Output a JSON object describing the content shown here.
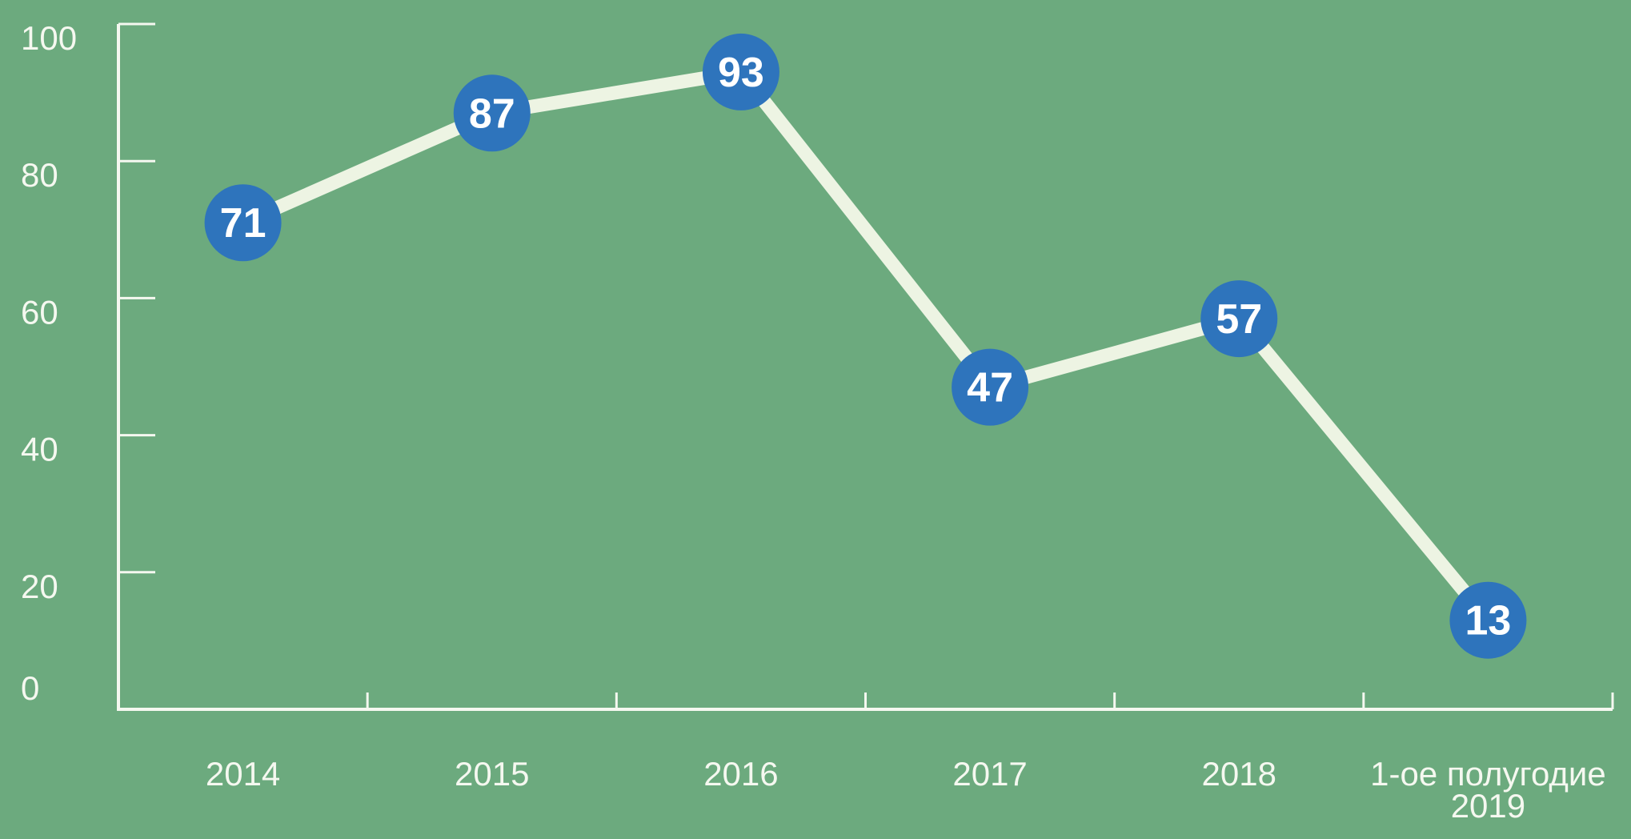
{
  "chart_data": {
    "type": "line",
    "title": "",
    "xlabel": "",
    "ylabel": "",
    "categories": [
      "2014",
      "2015",
      "2016",
      "2017",
      "2018",
      "1-ое полугодие\n2019"
    ],
    "values": [
      71,
      87,
      93,
      47,
      57,
      13
    ],
    "point_labels": [
      "71",
      "87",
      "93",
      "47",
      "57",
      "13"
    ],
    "ylim": [
      0,
      100
    ],
    "yticks": [
      0,
      20,
      40,
      60,
      80,
      100
    ],
    "grid": false,
    "legend": false,
    "marker_style": "filled-circle-with-value"
  },
  "colors": {
    "background": "#6CAA7E",
    "line": "#EDF4E3",
    "marker_fill": "#2E74BC",
    "marker_text": "#FFFFFF",
    "axis": "#F5F8F0",
    "label_text": "#F5F8F0"
  }
}
